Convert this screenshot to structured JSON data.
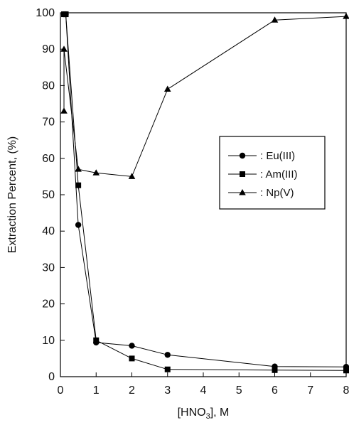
{
  "chart_data": {
    "type": "line",
    "title": "",
    "xlabel": {
      "prefix": "[HNO",
      "subscript": "3",
      "suffix": "], M"
    },
    "ylabel": "Extraction Percent, (%)",
    "xlim": [
      0,
      8
    ],
    "ylim": [
      0,
      100
    ],
    "x_ticks": [
      0,
      1,
      2,
      3,
      4,
      5,
      6,
      7,
      8
    ],
    "y_ticks": [
      0,
      10,
      20,
      30,
      40,
      50,
      60,
      70,
      80,
      90,
      100
    ],
    "grid": false,
    "legend_position": "center-right",
    "series": [
      {
        "name": ": Eu(III)",
        "marker": "circle",
        "color": "#000000",
        "points": [
          [
            0.1,
            99.6
          ],
          [
            0.15,
            99.6
          ],
          [
            0.5,
            41.7
          ],
          [
            1,
            9.4
          ],
          [
            2,
            8.5
          ],
          [
            3,
            6.0
          ],
          [
            6,
            2.8
          ],
          [
            8,
            2.7
          ]
        ]
      },
      {
        "name": ": Am(III)",
        "marker": "square",
        "color": "#000000",
        "points": [
          [
            0.1,
            99.6
          ],
          [
            0.15,
            99.6
          ],
          [
            0.5,
            52.6
          ],
          [
            1,
            10.0
          ],
          [
            2,
            5.0
          ],
          [
            3,
            2.0
          ],
          [
            6,
            1.8
          ],
          [
            8,
            1.7
          ]
        ]
      },
      {
        "name": ": Np(V)",
        "marker": "triangle",
        "color": "#000000",
        "points": [
          [
            0.1,
            73.0
          ],
          [
            0.1,
            90.0
          ],
          [
            0.5,
            57.0
          ],
          [
            1,
            56.0
          ],
          [
            2,
            55.0
          ],
          [
            3,
            79.0
          ],
          [
            6,
            98.0
          ],
          [
            8,
            99.0
          ]
        ]
      }
    ]
  }
}
